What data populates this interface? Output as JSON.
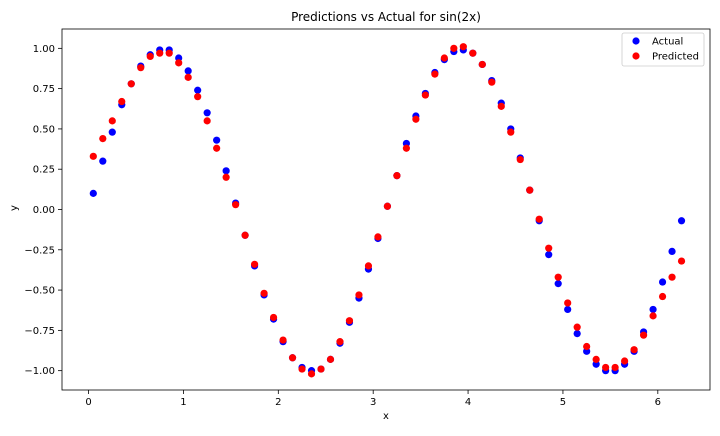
{
  "chart_data": {
    "type": "scatter",
    "title": "Predictions vs Actual for sin(2x)",
    "xlabel": "x",
    "ylabel": "y",
    "xlim": [
      -0.28,
      6.55
    ],
    "ylim": [
      -1.12,
      1.12
    ],
    "grid": false,
    "legend_position": "top-right",
    "x_ticks": [
      0,
      1,
      2,
      3,
      4,
      5,
      6
    ],
    "x_tick_labels": [
      "0",
      "1",
      "2",
      "3",
      "4",
      "5",
      "6"
    ],
    "y_ticks": [
      -1.0,
      -0.75,
      -0.5,
      -0.25,
      0.0,
      0.25,
      0.5,
      0.75,
      1.0
    ],
    "y_tick_labels": [
      "−1.00",
      "−0.75",
      "−0.50",
      "−0.25",
      "0.00",
      "0.25",
      "0.50",
      "0.75",
      "1.00"
    ],
    "x": [
      0.05,
      0.15,
      0.25,
      0.35,
      0.45,
      0.55,
      0.65,
      0.75,
      0.85,
      0.95,
      1.05,
      1.15,
      1.25,
      1.35,
      1.45,
      1.55,
      1.65,
      1.75,
      1.85,
      1.95,
      2.05,
      2.15,
      2.25,
      2.35,
      2.45,
      2.55,
      2.65,
      2.75,
      2.85,
      2.95,
      3.05,
      3.15,
      3.25,
      3.35,
      3.45,
      3.55,
      3.65,
      3.75,
      3.85,
      3.95,
      4.05,
      4.15,
      4.25,
      4.35,
      4.45,
      4.55,
      4.65,
      4.75,
      4.85,
      4.95,
      5.05,
      5.15,
      5.25,
      5.35,
      5.45,
      5.55,
      5.65,
      5.75,
      5.85,
      5.95,
      6.05,
      6.15,
      6.25
    ],
    "series": [
      {
        "name": "Actual",
        "color": "#0000ff",
        "values": [
          0.1,
          0.3,
          0.48,
          0.65,
          0.78,
          0.89,
          0.96,
          0.99,
          0.99,
          0.94,
          0.86,
          0.74,
          0.6,
          0.43,
          0.24,
          0.04,
          -0.16,
          -0.35,
          -0.53,
          -0.68,
          -0.82,
          -0.92,
          -0.98,
          -1.0,
          -0.99,
          -0.93,
          -0.83,
          -0.7,
          -0.55,
          -0.37,
          -0.18,
          0.02,
          0.21,
          0.41,
          0.58,
          0.72,
          0.85,
          0.93,
          0.98,
          0.99,
          0.97,
          0.9,
          0.8,
          0.66,
          0.5,
          0.32,
          0.12,
          -0.07,
          -0.28,
          -0.46,
          -0.62,
          -0.77,
          -0.88,
          -0.96,
          -1.0,
          -1.0,
          -0.96,
          -0.88,
          -0.76,
          -0.62,
          -0.45,
          -0.26,
          -0.07
        ]
      },
      {
        "name": "Predicted",
        "color": "#ff0000",
        "values": [
          0.33,
          0.44,
          0.55,
          0.67,
          0.78,
          0.88,
          0.95,
          0.97,
          0.97,
          0.91,
          0.82,
          0.7,
          0.55,
          0.38,
          0.2,
          0.03,
          -0.16,
          -0.34,
          -0.52,
          -0.67,
          -0.81,
          -0.92,
          -0.99,
          -1.02,
          -0.99,
          -0.93,
          -0.82,
          -0.69,
          -0.53,
          -0.35,
          -0.17,
          0.02,
          0.21,
          0.38,
          0.56,
          0.71,
          0.84,
          0.94,
          1.0,
          1.01,
          0.97,
          0.9,
          0.79,
          0.64,
          0.48,
          0.31,
          0.12,
          -0.06,
          -0.24,
          -0.42,
          -0.58,
          -0.73,
          -0.85,
          -0.93,
          -0.98,
          -0.98,
          -0.94,
          -0.87,
          -0.78,
          -0.66,
          -0.54,
          -0.42,
          -0.32
        ]
      }
    ]
  }
}
